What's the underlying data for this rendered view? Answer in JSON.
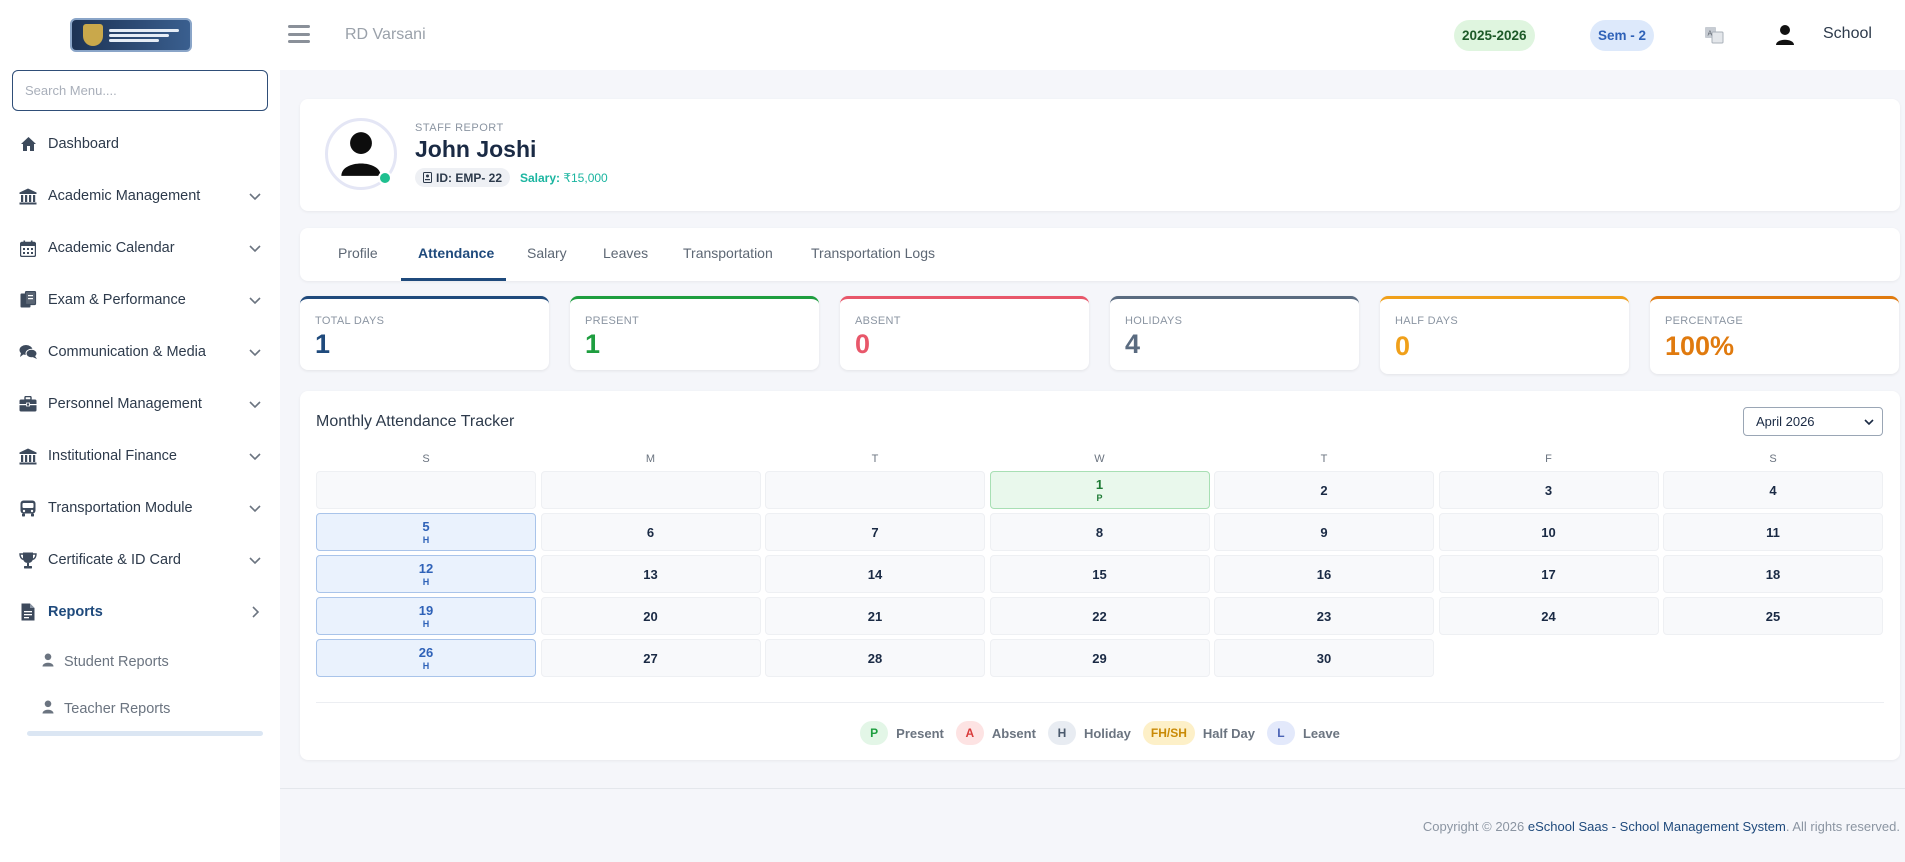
{
  "header": {
    "school_name": "RD Varsani",
    "academic_year": "2025-2026",
    "semester": "Sem - 2",
    "user_name": "School"
  },
  "sidebar": {
    "search_placeholder": "Search Menu....",
    "items": [
      {
        "label": "Dashboard",
        "icon": "home-icon"
      },
      {
        "label": "Academic Management",
        "icon": "bank-icon"
      },
      {
        "label": "Academic Calendar",
        "icon": "calendar-icon"
      },
      {
        "label": "Exam & Performance",
        "icon": "file-copy-icon"
      },
      {
        "label": "Communication & Media",
        "icon": "chat-icon"
      },
      {
        "label": "Personnel Management",
        "icon": "briefcase-icon"
      },
      {
        "label": "Institutional Finance",
        "icon": "bank-icon"
      },
      {
        "label": "Transportation Module",
        "icon": "bus-icon"
      },
      {
        "label": "Certificate & ID Card",
        "icon": "trophy-icon"
      },
      {
        "label": "Reports",
        "icon": "report-icon"
      }
    ],
    "sub_items": [
      {
        "label": "Student Reports",
        "icon": "user-icon"
      },
      {
        "label": "Teacher Reports",
        "icon": "user-icon"
      }
    ]
  },
  "profile": {
    "report_label": "STAFF REPORT",
    "name": "John Joshi",
    "id_text": "ID: EMP- 22",
    "salary_label": "Salary:",
    "salary_value": "₹15,000"
  },
  "tabs": [
    "Profile",
    "Attendance",
    "Salary",
    "Leaves",
    "Transportation",
    "Transportation Logs"
  ],
  "stats": [
    {
      "label": "TOTAL DAYS",
      "value": "1",
      "color": "#1f4a7c"
    },
    {
      "label": "PRESENT",
      "value": "1",
      "color": "#1e9e3f"
    },
    {
      "label": "ABSENT",
      "value": "0",
      "color": "#e8576a"
    },
    {
      "label": "HOLIDAYS",
      "value": "4",
      "color": "#5a6b80"
    },
    {
      "label": "HALF DAYS",
      "value": "0",
      "color": "#f0a01a"
    },
    {
      "label": "PERCENTAGE",
      "value": "100%",
      "color": "#e07a0e"
    }
  ],
  "tracker": {
    "title": "Monthly Attendance Tracker",
    "month": "April 2026",
    "weekdays": [
      "S",
      "M",
      "T",
      "W",
      "T",
      "F",
      "S"
    ],
    "first_weekday_index": 3,
    "days": [
      {
        "d": "1",
        "code": "P"
      },
      {
        "d": "2"
      },
      {
        "d": "3"
      },
      {
        "d": "4"
      },
      {
        "d": "5",
        "code": "H"
      },
      {
        "d": "6"
      },
      {
        "d": "7"
      },
      {
        "d": "8"
      },
      {
        "d": "9"
      },
      {
        "d": "10"
      },
      {
        "d": "11"
      },
      {
        "d": "12",
        "code": "H"
      },
      {
        "d": "13"
      },
      {
        "d": "14"
      },
      {
        "d": "15"
      },
      {
        "d": "16"
      },
      {
        "d": "17"
      },
      {
        "d": "18"
      },
      {
        "d": "19",
        "code": "H"
      },
      {
        "d": "20"
      },
      {
        "d": "21"
      },
      {
        "d": "22"
      },
      {
        "d": "23"
      },
      {
        "d": "24"
      },
      {
        "d": "25"
      },
      {
        "d": "26",
        "code": "H"
      },
      {
        "d": "27"
      },
      {
        "d": "28"
      },
      {
        "d": "29"
      },
      {
        "d": "30"
      }
    ],
    "legend": [
      {
        "code": "P",
        "label": "Present",
        "bg": "#e3f6e7",
        "fg": "#1e9e3f"
      },
      {
        "code": "A",
        "label": "Absent",
        "bg": "#fde3e3",
        "fg": "#d93c3c"
      },
      {
        "code": "H",
        "label": "Holiday",
        "bg": "#e8ecf2",
        "fg": "#4b5a6d"
      },
      {
        "code": "FH/SH",
        "label": "Half Day",
        "bg": "#fdf0c8",
        "fg": "#c98a06"
      },
      {
        "code": "L",
        "label": "Leave",
        "bg": "#e3e9fb",
        "fg": "#4b63b5"
      }
    ]
  },
  "footer": {
    "prefix": "Copyright © 2026 ",
    "brand": "eSchool Saas - School Management System",
    "suffix": ". All rights reserved."
  }
}
